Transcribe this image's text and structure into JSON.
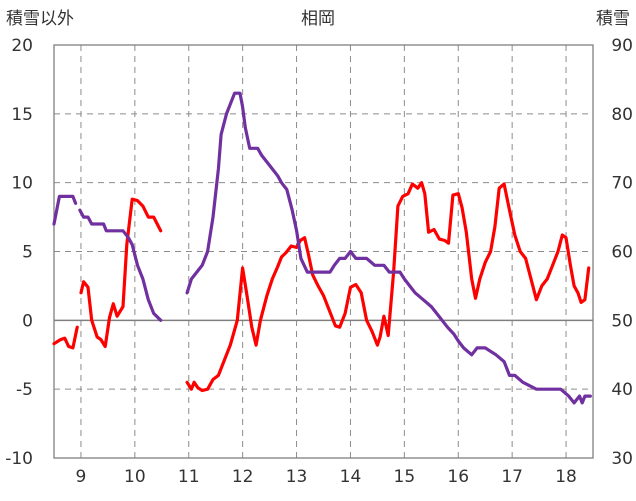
{
  "chart_data": {
    "type": "line",
    "title": "相岡",
    "left_axis_label": "積雪以外",
    "right_axis_label": "積雪",
    "x_ticks": [
      "9",
      "10",
      "11",
      "12",
      "13",
      "14",
      "15",
      "16",
      "17",
      "18"
    ],
    "xlim": [
      8.5,
      18.5
    ],
    "ylim_left": [
      -10,
      20
    ],
    "ylim_right": [
      30,
      90
    ],
    "left_ticks": [
      "20",
      "15",
      "10",
      "5",
      "0",
      "-5",
      "-10"
    ],
    "right_ticks": [
      "90",
      "80",
      "70",
      "60",
      "50",
      "40",
      "30"
    ],
    "grid": true,
    "series": [
      {
        "axis": "left",
        "color": "#ff0000",
        "segments": [
          [
            [
              8.5,
              -1.7
            ],
            [
              8.62,
              -1.4
            ],
            [
              8.7,
              -1.3
            ],
            [
              8.77,
              -1.9
            ],
            [
              8.85,
              -2.0
            ],
            [
              8.93,
              -0.5
            ]
          ],
          [
            [
              9.0,
              2.0
            ],
            [
              9.05,
              2.8
            ],
            [
              9.13,
              2.4
            ],
            [
              9.2,
              0.0
            ],
            [
              9.3,
              -1.2
            ],
            [
              9.37,
              -1.4
            ],
            [
              9.45,
              -1.9
            ],
            [
              9.53,
              0.2
            ],
            [
              9.6,
              1.2
            ],
            [
              9.67,
              0.3
            ],
            [
              9.78,
              1.0
            ],
            [
              9.85,
              5.5
            ],
            [
              9.95,
              8.8
            ],
            [
              10.05,
              8.7
            ],
            [
              10.15,
              8.3
            ],
            [
              10.25,
              7.5
            ],
            [
              10.35,
              7.5
            ],
            [
              10.48,
              6.5
            ]
          ],
          [
            [
              10.97,
              -4.5
            ],
            [
              11.05,
              -5.0
            ],
            [
              11.1,
              -4.5
            ],
            [
              11.17,
              -4.9
            ],
            [
              11.25,
              -5.1
            ],
            [
              11.35,
              -5.0
            ],
            [
              11.45,
              -4.3
            ],
            [
              11.55,
              -4.0
            ],
            [
              11.65,
              -3.0
            ],
            [
              11.77,
              -1.8
            ],
            [
              11.9,
              0.0
            ],
            [
              12.0,
              3.8
            ],
            [
              12.08,
              1.8
            ],
            [
              12.17,
              -0.5
            ],
            [
              12.25,
              -1.8
            ],
            [
              12.33,
              0.0
            ],
            [
              12.45,
              1.8
            ],
            [
              12.55,
              3.0
            ],
            [
              12.65,
              3.9
            ],
            [
              12.72,
              4.6
            ],
            [
              12.8,
              4.9
            ],
            [
              12.9,
              5.4
            ],
            [
              13.0,
              5.3
            ],
            [
              13.07,
              5.8
            ],
            [
              13.15,
              6.0
            ],
            [
              13.22,
              4.8
            ],
            [
              13.3,
              3.3
            ],
            [
              13.4,
              2.5
            ],
            [
              13.5,
              1.8
            ],
            [
              13.6,
              0.8
            ],
            [
              13.72,
              -0.4
            ],
            [
              13.8,
              -0.5
            ],
            [
              13.9,
              0.5
            ],
            [
              14.0,
              2.4
            ],
            [
              14.1,
              2.6
            ],
            [
              14.2,
              2.0
            ],
            [
              14.3,
              0.0
            ],
            [
              14.4,
              -0.8
            ],
            [
              14.5,
              -1.8
            ],
            [
              14.55,
              -1.2
            ],
            [
              14.62,
              0.3
            ],
            [
              14.7,
              -1.1
            ],
            [
              14.8,
              3.5
            ],
            [
              14.88,
              8.3
            ],
            [
              14.97,
              9.0
            ],
            [
              15.07,
              9.2
            ],
            [
              15.15,
              9.9
            ],
            [
              15.25,
              9.6
            ],
            [
              15.32,
              10.0
            ],
            [
              15.38,
              9.2
            ],
            [
              15.45,
              6.4
            ],
            [
              15.55,
              6.6
            ],
            [
              15.65,
              5.9
            ],
            [
              15.75,
              5.8
            ],
            [
              15.82,
              5.6
            ],
            [
              15.9,
              9.1
            ],
            [
              16.0,
              9.2
            ],
            [
              16.07,
              8.2
            ],
            [
              16.15,
              6.4
            ],
            [
              16.25,
              3.0
            ],
            [
              16.32,
              1.6
            ],
            [
              16.4,
              3.0
            ],
            [
              16.5,
              4.2
            ],
            [
              16.6,
              5.0
            ],
            [
              16.68,
              6.8
            ],
            [
              16.76,
              9.6
            ],
            [
              16.85,
              9.9
            ],
            [
              16.95,
              8.0
            ],
            [
              17.05,
              6.2
            ],
            [
              17.15,
              5.0
            ],
            [
              17.25,
              4.5
            ],
            [
              17.35,
              3.0
            ],
            [
              17.45,
              1.5
            ],
            [
              17.55,
              2.5
            ],
            [
              17.65,
              3.0
            ],
            [
              17.75,
              4.0
            ],
            [
              17.85,
              5.0
            ],
            [
              17.93,
              6.2
            ],
            [
              18.0,
              6.0
            ],
            [
              18.08,
              4.0
            ],
            [
              18.15,
              2.5
            ],
            [
              18.22,
              2.0
            ],
            [
              18.28,
              1.3
            ],
            [
              18.35,
              1.5
            ],
            [
              18.42,
              3.8
            ]
          ]
        ]
      },
      {
        "axis": "right",
        "color": "#7030a0",
        "segments": [
          [
            [
              8.5,
              64
            ],
            [
              8.6,
              68
            ],
            [
              8.75,
              68
            ],
            [
              8.85,
              68
            ],
            [
              8.9,
              67
            ]
          ],
          [
            [
              8.98,
              66
            ],
            [
              9.05,
              65
            ],
            [
              9.13,
              65
            ],
            [
              9.2,
              64
            ],
            [
              9.42,
              64
            ],
            [
              9.47,
              63
            ],
            [
              9.78,
              63
            ],
            [
              9.88,
              62
            ],
            [
              9.95,
              61
            ],
            [
              10.05,
              58
            ],
            [
              10.15,
              56
            ],
            [
              10.25,
              53
            ],
            [
              10.35,
              51
            ],
            [
              10.48,
              50
            ]
          ],
          [
            [
              10.97,
              54
            ],
            [
              11.05,
              56
            ],
            [
              11.15,
              57
            ],
            [
              11.25,
              58
            ],
            [
              11.35,
              60
            ],
            [
              11.45,
              65
            ],
            [
              11.55,
              72
            ],
            [
              11.6,
              77
            ],
            [
              11.7,
              80
            ],
            [
              11.8,
              82
            ],
            [
              11.85,
              83
            ],
            [
              11.95,
              83
            ],
            [
              12.0,
              81
            ],
            [
              12.05,
              78
            ],
            [
              12.13,
              75
            ],
            [
              12.28,
              75
            ],
            [
              12.35,
              74
            ],
            [
              12.45,
              73
            ],
            [
              12.55,
              72
            ],
            [
              12.65,
              71
            ],
            [
              12.72,
              70
            ],
            [
              12.82,
              69
            ],
            [
              12.92,
              66
            ],
            [
              13.0,
              63
            ],
            [
              13.08,
              59
            ],
            [
              13.2,
              57
            ],
            [
              13.3,
              57
            ],
            [
              13.5,
              57
            ],
            [
              13.62,
              57
            ],
            [
              13.7,
              58
            ],
            [
              13.8,
              59
            ],
            [
              13.9,
              59
            ],
            [
              14.0,
              60
            ],
            [
              14.1,
              59
            ],
            [
              14.3,
              59
            ],
            [
              14.45,
              58
            ],
            [
              14.5,
              58
            ],
            [
              14.62,
              58
            ],
            [
              14.72,
              57
            ],
            [
              14.82,
              57
            ],
            [
              14.92,
              57
            ],
            [
              15.0,
              56
            ],
            [
              15.1,
              55
            ],
            [
              15.2,
              54
            ],
            [
              15.35,
              53
            ],
            [
              15.5,
              52
            ],
            [
              15.6,
              51
            ],
            [
              15.7,
              50
            ],
            [
              15.8,
              49
            ],
            [
              15.92,
              48
            ],
            [
              16.0,
              47
            ],
            [
              16.1,
              46
            ],
            [
              16.25,
              45
            ],
            [
              16.35,
              46
            ],
            [
              16.5,
              46
            ],
            [
              16.7,
              45
            ],
            [
              16.85,
              44
            ],
            [
              16.95,
              42
            ],
            [
              17.05,
              42
            ],
            [
              17.2,
              41
            ],
            [
              17.45,
              40
            ],
            [
              17.7,
              40
            ],
            [
              17.9,
              40
            ],
            [
              18.05,
              39
            ],
            [
              18.15,
              38
            ],
            [
              18.25,
              39
            ],
            [
              18.3,
              38
            ],
            [
              18.35,
              39
            ],
            [
              18.45,
              39
            ]
          ]
        ]
      }
    ]
  }
}
